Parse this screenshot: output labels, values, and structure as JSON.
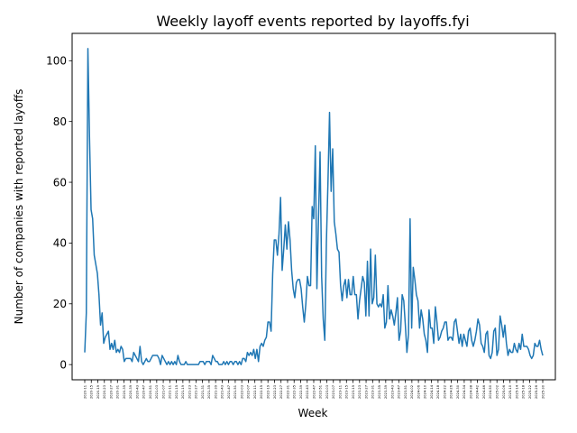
{
  "chart_data": {
    "type": "line",
    "title": "Weekly layoff events reported by layoffs.fyi",
    "xlabel": "Week",
    "ylabel": "Number of companies with reported layoffs",
    "ylim": [
      -5,
      109
    ],
    "yticks": [
      0,
      20,
      40,
      60,
      80,
      100
    ],
    "grid": false,
    "series_color": "#1f77b4",
    "x_tick_labels": [
      "2020-11",
      "2020-15",
      "2020-19",
      "2020-23",
      "2020-27",
      "2020-31",
      "2020-35",
      "2020-39",
      "2020-43",
      "2020-47",
      "2020-51",
      "2021-03",
      "2021-07",
      "2021-11",
      "2021-15",
      "2021-19",
      "2021-23",
      "2021-27",
      "2021-31",
      "2021-35",
      "2021-39",
      "2021-43",
      "2021-47",
      "2021-51",
      "2022-03",
      "2022-07",
      "2022-11",
      "2022-15",
      "2022-19",
      "2022-23",
      "2022-27",
      "2022-31",
      "2022-35",
      "2022-39",
      "2022-43",
      "2022-47",
      "2022-51",
      "2023-03",
      "2023-07",
      "2023-11",
      "2023-15",
      "2023-19",
      "2023-23",
      "2023-27",
      "2023-31",
      "2023-35",
      "2023-39",
      "2023-43",
      "2023-47",
      "2023-51",
      "2024-02",
      "2024-06",
      "2024-10",
      "2024-14",
      "2024-18",
      "2024-22",
      "2024-26",
      "2024-30",
      "2024-34",
      "2024-38",
      "2024-42",
      "2024-46",
      "2024-50",
      "2025-02",
      "2025-06",
      "2025-10",
      "2025-14",
      "2025-18",
      "2025-22",
      "2025-26",
      "2025-30"
    ],
    "series": [
      {
        "values": [
          4,
          17,
          104,
          75,
          51,
          48,
          36,
          33,
          30,
          23,
          13,
          17,
          7,
          9,
          10,
          11,
          5,
          7,
          5,
          8,
          4,
          5,
          4,
          6,
          5,
          1,
          2,
          2,
          2,
          2,
          1,
          4,
          3,
          2,
          1,
          6,
          1,
          0,
          1,
          2,
          1,
          1,
          2,
          3,
          3,
          3,
          3,
          2,
          0,
          3,
          2,
          1,
          0,
          1,
          0,
          1,
          0,
          1,
          0,
          3,
          1,
          0,
          0,
          0,
          1,
          0,
          0,
          0,
          0,
          0,
          0,
          0,
          0,
          1,
          1,
          1,
          0,
          1,
          1,
          1,
          0,
          3,
          2,
          1,
          1,
          0,
          0,
          0,
          1,
          0,
          1,
          0,
          1,
          1,
          0,
          1,
          1,
          0,
          1,
          0,
          2,
          2,
          1,
          4,
          3,
          4,
          3,
          5,
          2,
          5,
          1,
          6,
          7,
          6,
          8,
          9,
          14,
          14,
          11,
          30,
          41,
          41,
          36,
          43,
          55,
          31,
          38,
          46,
          38,
          47,
          41,
          31,
          25,
          22,
          27,
          28,
          28,
          25,
          19,
          14,
          20,
          29,
          26,
          26,
          52,
          48,
          72,
          25,
          48,
          70,
          29,
          15,
          8,
          40,
          60,
          83,
          57,
          71,
          47,
          43,
          38,
          37,
          26,
          21,
          26,
          28,
          22,
          28,
          23,
          23,
          29,
          23,
          23,
          15,
          21,
          25,
          29,
          27,
          16,
          34,
          16,
          38,
          20,
          22,
          36,
          20,
          19,
          20,
          19,
          23,
          12,
          14,
          26,
          15,
          18,
          16,
          13,
          17,
          22,
          8,
          11,
          23,
          21,
          13,
          4,
          10,
          48,
          12,
          32,
          28,
          23,
          21,
          12,
          18,
          15,
          10,
          8,
          4,
          18,
          12,
          12,
          7,
          19,
          14,
          8,
          9,
          11,
          12,
          14,
          14,
          8,
          9,
          9,
          8,
          14,
          15,
          11,
          7,
          10,
          6,
          10,
          8,
          6,
          11,
          12,
          8,
          6,
          8,
          11,
          15,
          13,
          7,
          6,
          4,
          10,
          11,
          3,
          2,
          4,
          11,
          12,
          3,
          5,
          16,
          13,
          9,
          13,
          7,
          3,
          5,
          4,
          4,
          7,
          5,
          4,
          7,
          5,
          10,
          6,
          6,
          6,
          5,
          3,
          2,
          3,
          7,
          6,
          6,
          8,
          5,
          3
        ]
      }
    ]
  }
}
